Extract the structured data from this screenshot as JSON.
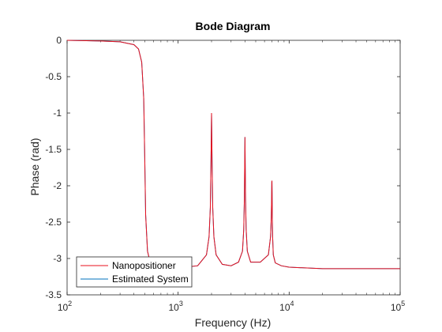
{
  "chart_data": {
    "type": "line",
    "title": "Bode Diagram",
    "xlabel": "Frequency  (Hz)",
    "ylabel": "Phase (rad)",
    "xscale": "log",
    "xlim": [
      100,
      100000
    ],
    "ylim": [
      -3.5,
      0
    ],
    "xticks": [
      {
        "value": 100,
        "base": "10",
        "exp": "2"
      },
      {
        "value": 1000,
        "base": "10",
        "exp": "3"
      },
      {
        "value": 10000,
        "base": "10",
        "exp": "4"
      },
      {
        "value": 100000,
        "base": "10",
        "exp": "5"
      }
    ],
    "yticks": [
      {
        "value": 0,
        "label": "0"
      },
      {
        "value": -0.5,
        "label": "-0.5"
      },
      {
        "value": -1,
        "label": "-1"
      },
      {
        "value": -1.5,
        "label": "-1.5"
      },
      {
        "value": -2,
        "label": "-2"
      },
      {
        "value": -2.5,
        "label": "-2.5"
      },
      {
        "value": -3,
        "label": "-3"
      },
      {
        "value": -3.5,
        "label": "-3.5"
      }
    ],
    "grid": false,
    "legend_position": "bottom-left",
    "series": [
      {
        "name": "Estimated System",
        "color": "#0072bd",
        "x": [
          100,
          200,
          300,
          400,
          440,
          470,
          490,
          500,
          510,
          530,
          560,
          600,
          800,
          1000,
          1500,
          1800,
          1900,
          1950,
          1980,
          2000,
          2020,
          2050,
          2100,
          2200,
          2500,
          3000,
          3500,
          3800,
          3900,
          3950,
          3980,
          4000,
          4020,
          4050,
          4100,
          4200,
          4500,
          5500,
          6500,
          6800,
          6900,
          6950,
          6980,
          7000,
          7020,
          7050,
          7100,
          7200,
          7500,
          8500,
          10000,
          20000,
          50000,
          100000
        ],
        "y": [
          0,
          -0.01,
          -0.02,
          -0.06,
          -0.12,
          -0.3,
          -0.8,
          -1.57,
          -2.4,
          -2.9,
          -3.05,
          -3.1,
          -3.13,
          -3.13,
          -3.1,
          -2.95,
          -2.7,
          -2.3,
          -1.6,
          -1.0,
          -1.6,
          -2.3,
          -2.7,
          -2.95,
          -3.08,
          -3.1,
          -3.05,
          -2.9,
          -2.6,
          -2.2,
          -1.7,
          -1.33,
          -1.7,
          -2.2,
          -2.6,
          -2.9,
          -3.05,
          -3.05,
          -2.95,
          -2.7,
          -2.45,
          -2.2,
          -1.95,
          -1.93,
          -2.1,
          -2.45,
          -2.7,
          -2.95,
          -3.06,
          -3.1,
          -3.12,
          -3.14,
          -3.14,
          -3.14
        ]
      },
      {
        "name": "Nanopositioner",
        "color": "#e8101e",
        "x": [
          100,
          200,
          300,
          400,
          440,
          470,
          490,
          500,
          510,
          530,
          560,
          600,
          800,
          1000,
          1500,
          1800,
          1900,
          1950,
          1980,
          2000,
          2020,
          2050,
          2100,
          2200,
          2500,
          3000,
          3500,
          3800,
          3900,
          3950,
          3980,
          4000,
          4020,
          4050,
          4100,
          4200,
          4500,
          5500,
          6500,
          6800,
          6900,
          6950,
          6980,
          7000,
          7020,
          7050,
          7100,
          7200,
          7500,
          8500,
          10000,
          20000,
          50000,
          100000
        ],
        "y": [
          0,
          -0.01,
          -0.02,
          -0.06,
          -0.12,
          -0.3,
          -0.8,
          -1.57,
          -2.4,
          -2.9,
          -3.05,
          -3.1,
          -3.13,
          -3.13,
          -3.1,
          -2.95,
          -2.7,
          -2.3,
          -1.6,
          -1.0,
          -1.6,
          -2.3,
          -2.7,
          -2.95,
          -3.08,
          -3.1,
          -3.05,
          -2.9,
          -2.6,
          -2.2,
          -1.7,
          -1.33,
          -1.7,
          -2.2,
          -2.6,
          -2.9,
          -3.05,
          -3.05,
          -2.95,
          -2.7,
          -2.45,
          -2.2,
          -1.95,
          -1.93,
          -2.1,
          -2.45,
          -2.7,
          -2.95,
          -3.06,
          -3.1,
          -3.12,
          -3.14,
          -3.14,
          -3.14
        ]
      }
    ],
    "legend": [
      {
        "name": "Nanopositioner",
        "color": "#e8101e"
      },
      {
        "name": "Estimated System",
        "color": "#0072bd"
      }
    ]
  }
}
